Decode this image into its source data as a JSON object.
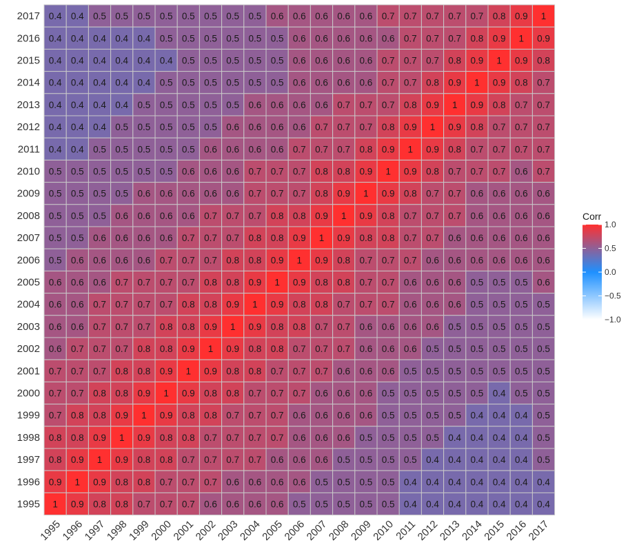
{
  "chart_data": {
    "type": "heatmap",
    "title": "",
    "xlabel": "",
    "ylabel": "",
    "years": [
      "1995",
      "1996",
      "1997",
      "1998",
      "1999",
      "2000",
      "2001",
      "2002",
      "2003",
      "2004",
      "2005",
      "2006",
      "2007",
      "2008",
      "2009",
      "2010",
      "2011",
      "2012",
      "2013",
      "2014",
      "2015",
      "2016",
      "2017"
    ],
    "rows_top_to_bottom": [
      {
        "year": "2017",
        "values": [
          0.4,
          0.4,
          0.5,
          0.5,
          0.5,
          0.5,
          0.5,
          0.5,
          0.5,
          0.5,
          0.6,
          0.6,
          0.6,
          0.6,
          0.6,
          0.7,
          0.7,
          0.7,
          0.7,
          0.7,
          0.8,
          0.9,
          1
        ]
      },
      {
        "year": "2016",
        "values": [
          0.4,
          0.4,
          0.4,
          0.4,
          0.4,
          0.5,
          0.5,
          0.5,
          0.5,
          0.5,
          0.5,
          0.6,
          0.6,
          0.6,
          0.6,
          0.6,
          0.7,
          0.7,
          0.7,
          0.8,
          0.9,
          1,
          0.9
        ]
      },
      {
        "year": "2015",
        "values": [
          0.4,
          0.4,
          0.4,
          0.4,
          0.4,
          0.4,
          0.5,
          0.5,
          0.5,
          0.5,
          0.5,
          0.6,
          0.6,
          0.6,
          0.6,
          0.7,
          0.7,
          0.7,
          0.8,
          0.9,
          1,
          0.9,
          0.8
        ]
      },
      {
        "year": "2014",
        "values": [
          0.4,
          0.4,
          0.4,
          0.4,
          0.4,
          0.5,
          0.5,
          0.5,
          0.5,
          0.5,
          0.5,
          0.6,
          0.6,
          0.6,
          0.6,
          0.7,
          0.7,
          0.8,
          0.9,
          1,
          0.9,
          0.8,
          0.7
        ]
      },
      {
        "year": "2013",
        "values": [
          0.4,
          0.4,
          0.4,
          0.4,
          0.5,
          0.5,
          0.5,
          0.5,
          0.5,
          0.6,
          0.6,
          0.6,
          0.6,
          0.7,
          0.7,
          0.7,
          0.8,
          0.9,
          1,
          0.9,
          0.8,
          0.7,
          0.7
        ]
      },
      {
        "year": "2012",
        "values": [
          0.4,
          0.4,
          0.4,
          0.5,
          0.5,
          0.5,
          0.5,
          0.5,
          0.6,
          0.6,
          0.6,
          0.6,
          0.7,
          0.7,
          0.7,
          0.8,
          0.9,
          1,
          0.9,
          0.8,
          0.7,
          0.7,
          0.7
        ]
      },
      {
        "year": "2011",
        "values": [
          0.4,
          0.4,
          0.5,
          0.5,
          0.5,
          0.5,
          0.5,
          0.6,
          0.6,
          0.6,
          0.6,
          0.7,
          0.7,
          0.7,
          0.8,
          0.9,
          1,
          0.9,
          0.8,
          0.7,
          0.7,
          0.7,
          0.7
        ]
      },
      {
        "year": "2010",
        "values": [
          0.5,
          0.5,
          0.5,
          0.5,
          0.5,
          0.5,
          0.6,
          0.6,
          0.6,
          0.7,
          0.7,
          0.7,
          0.8,
          0.8,
          0.9,
          1,
          0.9,
          0.8,
          0.7,
          0.7,
          0.7,
          0.6,
          0.7
        ]
      },
      {
        "year": "2009",
        "values": [
          0.5,
          0.5,
          0.5,
          0.5,
          0.6,
          0.6,
          0.6,
          0.6,
          0.6,
          0.7,
          0.7,
          0.7,
          0.8,
          0.9,
          1,
          0.9,
          0.8,
          0.7,
          0.7,
          0.6,
          0.6,
          0.6,
          0.6
        ]
      },
      {
        "year": "2008",
        "values": [
          0.5,
          0.5,
          0.5,
          0.6,
          0.6,
          0.6,
          0.6,
          0.7,
          0.7,
          0.7,
          0.8,
          0.8,
          0.9,
          1,
          0.9,
          0.8,
          0.7,
          0.7,
          0.7,
          0.6,
          0.6,
          0.6,
          0.6
        ]
      },
      {
        "year": "2007",
        "values": [
          0.5,
          0.5,
          0.6,
          0.6,
          0.6,
          0.6,
          0.7,
          0.7,
          0.7,
          0.8,
          0.8,
          0.9,
          1,
          0.9,
          0.8,
          0.8,
          0.7,
          0.7,
          0.6,
          0.6,
          0.6,
          0.6,
          0.6
        ]
      },
      {
        "year": "2006",
        "values": [
          0.5,
          0.6,
          0.6,
          0.6,
          0.6,
          0.7,
          0.7,
          0.7,
          0.8,
          0.8,
          0.9,
          1,
          0.9,
          0.8,
          0.7,
          0.7,
          0.7,
          0.6,
          0.6,
          0.6,
          0.6,
          0.6,
          0.6
        ]
      },
      {
        "year": "2005",
        "values": [
          0.6,
          0.6,
          0.6,
          0.7,
          0.7,
          0.7,
          0.7,
          0.8,
          0.8,
          0.9,
          1,
          0.9,
          0.8,
          0.8,
          0.7,
          0.7,
          0.6,
          0.6,
          0.6,
          0.5,
          0.5,
          0.5,
          0.6
        ]
      },
      {
        "year": "2004",
        "values": [
          0.6,
          0.6,
          0.7,
          0.7,
          0.7,
          0.7,
          0.8,
          0.8,
          0.9,
          1,
          0.9,
          0.8,
          0.8,
          0.7,
          0.7,
          0.7,
          0.6,
          0.6,
          0.6,
          0.5,
          0.5,
          0.5,
          0.5
        ]
      },
      {
        "year": "2003",
        "values": [
          0.6,
          0.6,
          0.7,
          0.7,
          0.7,
          0.8,
          0.8,
          0.9,
          1,
          0.9,
          0.8,
          0.8,
          0.7,
          0.7,
          0.6,
          0.6,
          0.6,
          0.6,
          0.5,
          0.5,
          0.5,
          0.5,
          0.5
        ]
      },
      {
        "year": "2002",
        "values": [
          0.6,
          0.7,
          0.7,
          0.7,
          0.8,
          0.8,
          0.9,
          1,
          0.9,
          0.8,
          0.8,
          0.7,
          0.7,
          0.7,
          0.6,
          0.6,
          0.6,
          0.5,
          0.5,
          0.5,
          0.5,
          0.5,
          0.5
        ]
      },
      {
        "year": "2001",
        "values": [
          0.7,
          0.7,
          0.7,
          0.8,
          0.8,
          0.9,
          1,
          0.9,
          0.8,
          0.8,
          0.7,
          0.7,
          0.7,
          0.6,
          0.6,
          0.6,
          0.5,
          0.5,
          0.5,
          0.5,
          0.5,
          0.5,
          0.5
        ]
      },
      {
        "year": "2000",
        "values": [
          0.7,
          0.7,
          0.8,
          0.8,
          0.9,
          1,
          0.9,
          0.8,
          0.8,
          0.7,
          0.7,
          0.7,
          0.6,
          0.6,
          0.6,
          0.5,
          0.5,
          0.5,
          0.5,
          0.5,
          0.4,
          0.5,
          0.5
        ]
      },
      {
        "year": "1999",
        "values": [
          0.7,
          0.8,
          0.8,
          0.9,
          1,
          0.9,
          0.8,
          0.8,
          0.7,
          0.7,
          0.7,
          0.6,
          0.6,
          0.6,
          0.6,
          0.5,
          0.5,
          0.5,
          0.5,
          0.4,
          0.4,
          0.4,
          0.5
        ]
      },
      {
        "year": "1998",
        "values": [
          0.8,
          0.8,
          0.9,
          1,
          0.9,
          0.8,
          0.8,
          0.7,
          0.7,
          0.7,
          0.7,
          0.6,
          0.6,
          0.6,
          0.5,
          0.5,
          0.5,
          0.5,
          0.4,
          0.4,
          0.4,
          0.4,
          0.5
        ]
      },
      {
        "year": "1997",
        "values": [
          0.8,
          0.9,
          1,
          0.9,
          0.8,
          0.8,
          0.7,
          0.7,
          0.7,
          0.7,
          0.6,
          0.6,
          0.6,
          0.5,
          0.5,
          0.5,
          0.5,
          0.4,
          0.4,
          0.4,
          0.4,
          0.4,
          0.5
        ]
      },
      {
        "year": "1996",
        "values": [
          0.9,
          1,
          0.9,
          0.8,
          0.8,
          0.7,
          0.7,
          0.7,
          0.6,
          0.6,
          0.6,
          0.6,
          0.5,
          0.5,
          0.5,
          0.5,
          0.4,
          0.4,
          0.4,
          0.4,
          0.4,
          0.4,
          0.4
        ]
      },
      {
        "year": "1995",
        "values": [
          1,
          0.9,
          0.8,
          0.8,
          0.7,
          0.7,
          0.7,
          0.6,
          0.6,
          0.6,
          0.6,
          0.5,
          0.5,
          0.5,
          0.5,
          0.5,
          0.4,
          0.4,
          0.4,
          0.4,
          0.4,
          0.4,
          0.4
        ]
      }
    ],
    "color_scale": {
      "low": "#ffffff",
      "mid": "#1e90ff",
      "high": "#ff3030",
      "domain": [
        -1,
        0,
        1
      ]
    },
    "legend": {
      "title": "Corr",
      "placement": "right",
      "labels": [
        "1.0",
        "0.5",
        "0.0",
        "−0.5",
        "−1.0"
      ],
      "values": [
        1,
        0.5,
        0,
        -0.5,
        -1
      ]
    },
    "grid_line_color": "#c8c8c8"
  }
}
